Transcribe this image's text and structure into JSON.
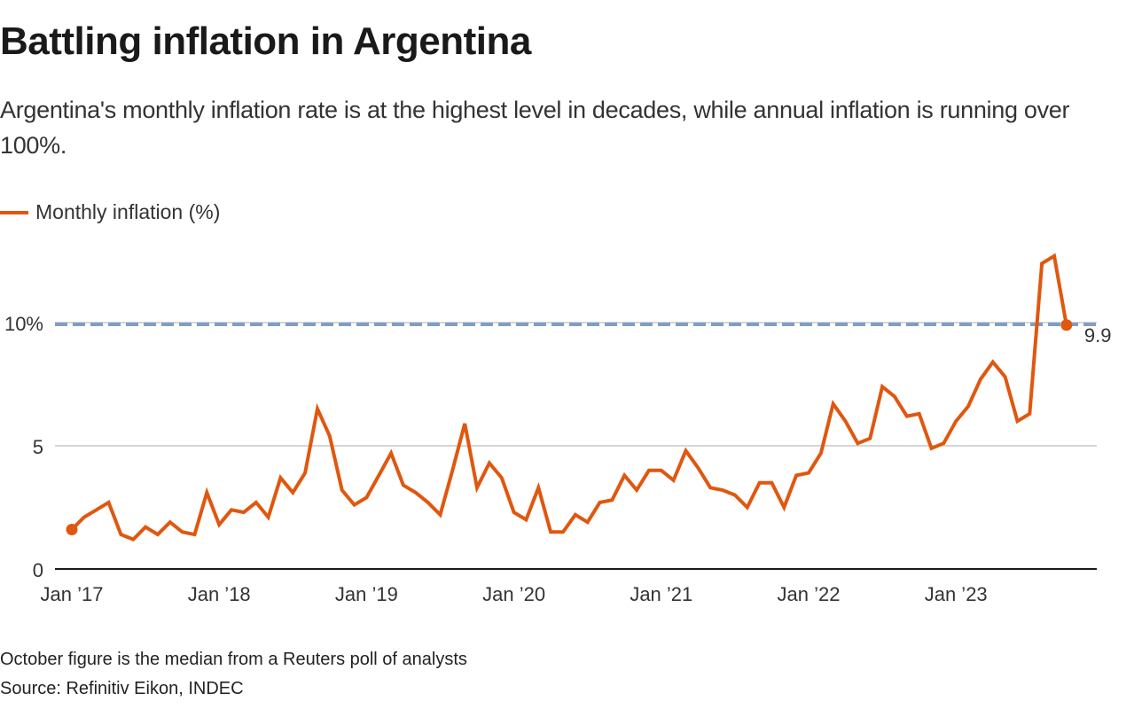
{
  "title": "Battling inflation in Argentina",
  "subtitle": "Argentina's monthly inflation rate is at the highest level in decades, while annual inflation is running over 100%.",
  "footnote": "October figure is the median from a Reuters poll of analysts",
  "source": "Source: Refinitiv Eikon, INDEC",
  "colors": {
    "series": "#e0570f",
    "reference_line": "#7f9ec5",
    "grid": "#c8c8c8",
    "axis": "#1a1a1a"
  },
  "chart_data": {
    "type": "line",
    "title": "Battling inflation in Argentina",
    "xlabel": "",
    "ylabel": "",
    "ylim": [
      0,
      13
    ],
    "grid": true,
    "legend": {
      "position": "top-left",
      "entries": [
        "Monthly inflation (%)"
      ]
    },
    "x_start": "Jan 2017",
    "x_end": "Oct 2023",
    "x_ticks": [
      "Jan ’17",
      "Jan ’18",
      "Jan ’19",
      "Jan ’20",
      "Jan ’21",
      "Jan ’22",
      "Jan ’23"
    ],
    "x_tick_month_index": [
      0,
      12,
      24,
      36,
      48,
      60,
      72
    ],
    "y_ticks": [
      0,
      5,
      10
    ],
    "y_tick_labels": [
      "0",
      "5",
      "10%"
    ],
    "reference_line": {
      "value": 10,
      "style": "dashed"
    },
    "end_label": "9.9",
    "series": [
      {
        "name": "Monthly inflation (%)",
        "values": [
          1.6,
          2.1,
          2.4,
          2.7,
          1.4,
          1.2,
          1.7,
          1.4,
          1.9,
          1.5,
          1.4,
          3.1,
          1.8,
          2.4,
          2.3,
          2.7,
          2.1,
          3.7,
          3.1,
          3.9,
          6.5,
          5.4,
          3.2,
          2.6,
          2.9,
          3.8,
          4.7,
          3.4,
          3.1,
          2.7,
          2.2,
          4.0,
          5.9,
          3.3,
          4.3,
          3.7,
          2.3,
          2.0,
          3.3,
          1.5,
          1.5,
          2.2,
          1.9,
          2.7,
          2.8,
          3.8,
          3.2,
          4.0,
          4.0,
          3.6,
          4.8,
          4.1,
          3.3,
          3.2,
          3.0,
          2.5,
          3.5,
          3.5,
          2.5,
          3.8,
          3.9,
          4.7,
          6.7,
          6.0,
          5.1,
          5.3,
          7.4,
          7.0,
          6.2,
          6.3,
          4.9,
          5.1,
          6.0,
          6.6,
          7.7,
          8.4,
          7.8,
          6.0,
          6.3,
          12.4,
          12.7,
          9.9
        ]
      }
    ]
  }
}
